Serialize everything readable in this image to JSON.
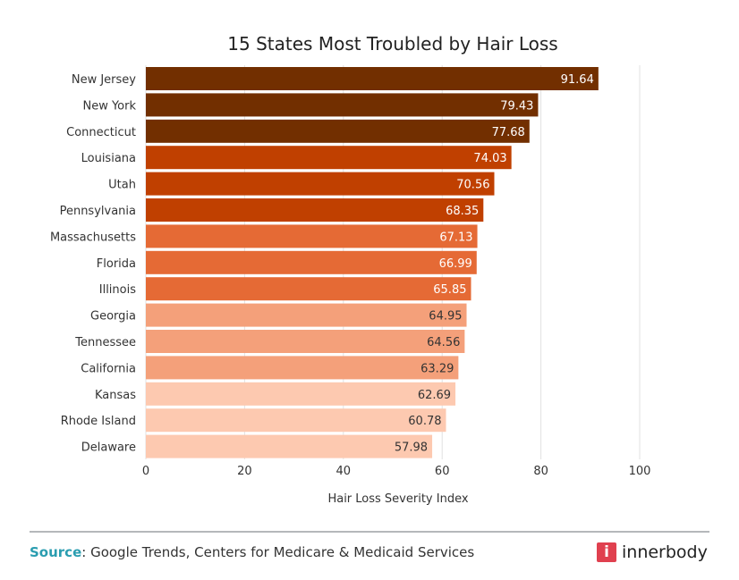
{
  "chart_data": {
    "type": "bar",
    "orientation": "horizontal",
    "title": "15 States Most Troubled by Hair Loss",
    "xlabel": "Hair Loss Severity Index",
    "ylabel": "",
    "xlim": [
      0,
      100
    ],
    "xticks": [
      0,
      20,
      40,
      60,
      80,
      100
    ],
    "grid": true,
    "categories": [
      "New Jersey",
      "New York",
      "Connecticut",
      "Louisiana",
      "Utah",
      "Pennsylvania",
      "Massachusetts",
      "Florida",
      "Illinois",
      "Georgia",
      "Tennessee",
      "California",
      "Kansas",
      "Rhode Island",
      "Delaware"
    ],
    "values": [
      91.64,
      79.43,
      77.68,
      74.03,
      70.56,
      68.35,
      67.13,
      66.99,
      65.85,
      64.95,
      64.56,
      63.29,
      62.69,
      60.78,
      57.98
    ],
    "value_labels": [
      "91.64",
      "79.43",
      "77.68",
      "74.03",
      "70.56",
      "68.35",
      "67.13",
      "66.99",
      "65.85",
      "64.95",
      "64.56",
      "63.29",
      "62.69",
      "60.78",
      "57.98"
    ],
    "colors": [
      "#722f00",
      "#722f00",
      "#722f00",
      "#c04000",
      "#c04000",
      "#c04000",
      "#e56a35",
      "#e56a35",
      "#e56a35",
      "#f4a07a",
      "#f4a07a",
      "#f4a07a",
      "#fdc9b0",
      "#fdc9b0",
      "#fdc9b0"
    ]
  },
  "footer": {
    "source_label": "Source",
    "source_text": ": Google Trends, Centers for Medicare & Medicaid Services",
    "logo_text": "innerbody",
    "logo_icon": "i"
  }
}
